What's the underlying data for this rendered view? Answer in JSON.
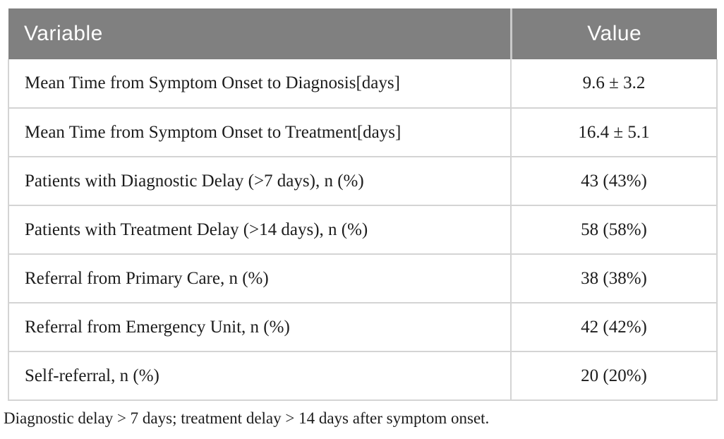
{
  "table": {
    "columns": {
      "variable_label": "Variable",
      "value_label": "Value"
    },
    "rows": [
      {
        "variable": "Mean Time from Symptom Onset to Diagnosis[days]",
        "value": "9.6 ± 3.2"
      },
      {
        "variable": "Mean Time from Symptom Onset to Treatment[days]",
        "value": "16.4 ± 5.1"
      },
      {
        "variable": "Patients with Diagnostic Delay (>7 days), n (%)",
        "value": "43 (43%)"
      },
      {
        "variable": "Patients with Treatment Delay (>14 days), n (%)",
        "value": "58 (58%)"
      },
      {
        "variable": "Referral from Primary Care, n (%)",
        "value": "38 (38%)"
      },
      {
        "variable": "Referral from Emergency Unit, n (%)",
        "value": "42 (42%)"
      },
      {
        "variable": "Self-referral, n (%)",
        "value": "20 (20%)"
      }
    ]
  },
  "footnote": "Diagnostic delay > 7 days; treatment delay > 14 days after symptom onset.",
  "colors": {
    "header_bg": "#808080",
    "header_text": "#ffffff",
    "body_text": "#1c1c1c",
    "border": "#d4d4d4",
    "header_divider": "#c9c9c9",
    "page_bg": "#ffffff"
  }
}
